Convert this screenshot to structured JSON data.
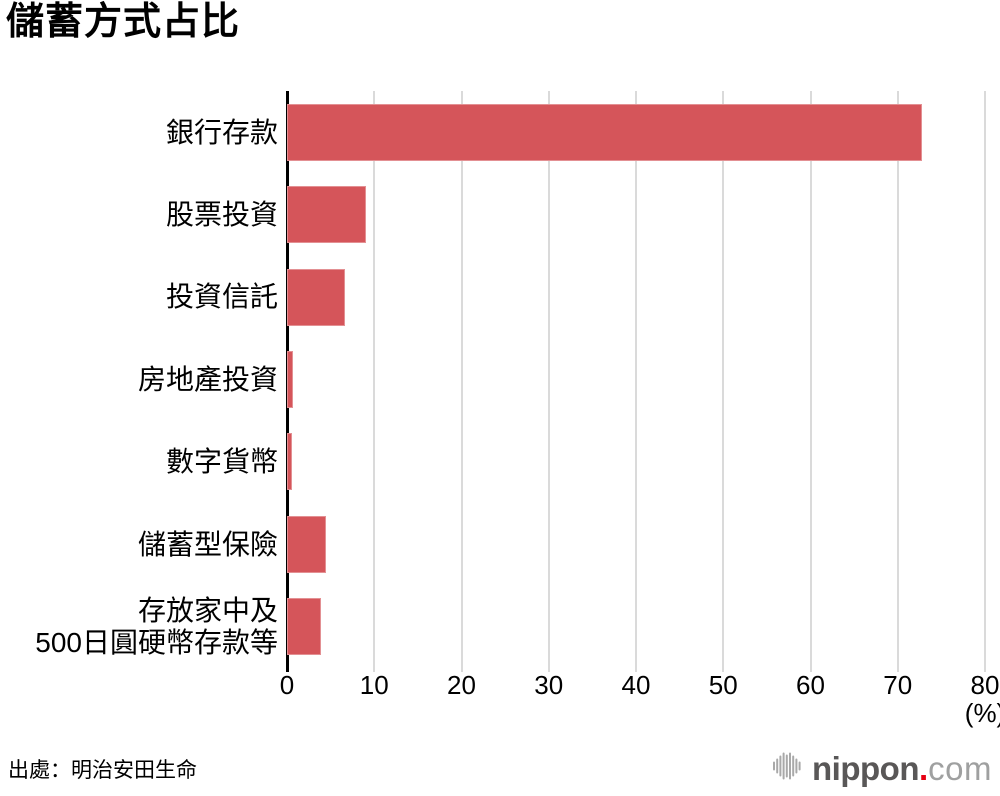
{
  "title": "儲蓄方式占比",
  "source": "出處：明治安田生命",
  "axis": {
    "unit": "(%)",
    "ticks": [
      "0",
      "10",
      "20",
      "30",
      "40",
      "50",
      "60",
      "70",
      "80"
    ]
  },
  "logo": {
    "brand": "nippon",
    "dot": ".",
    "tld": "com",
    "icon": "waveform-icon"
  },
  "colors": {
    "bar": "#d5555a",
    "gridline": "#dadada",
    "axis": "#000000",
    "logo_dark": "#595757",
    "logo_light": "#9fa0a0",
    "logo_dot": "#e60012"
  },
  "chart_data": {
    "type": "bar",
    "orientation": "horizontal",
    "title": "儲蓄方式占比",
    "categories": [
      "銀行存款",
      "股票投資",
      "投資信託",
      "房地產投資",
      "數字貨幣",
      "儲蓄型保險",
      "存放家中及\n500日圓硬幣存款等"
    ],
    "values": [
      72.8,
      9.1,
      6.6,
      0.7,
      0.6,
      4.5,
      3.9
    ],
    "xlabel": "(%)",
    "xlim": [
      0,
      80
    ],
    "xticks": [
      0,
      10,
      20,
      30,
      40,
      50,
      60,
      70,
      80
    ],
    "grid": true,
    "legend": false,
    "bar_color": "#d5555a",
    "source": "出處：明治安田生命"
  }
}
